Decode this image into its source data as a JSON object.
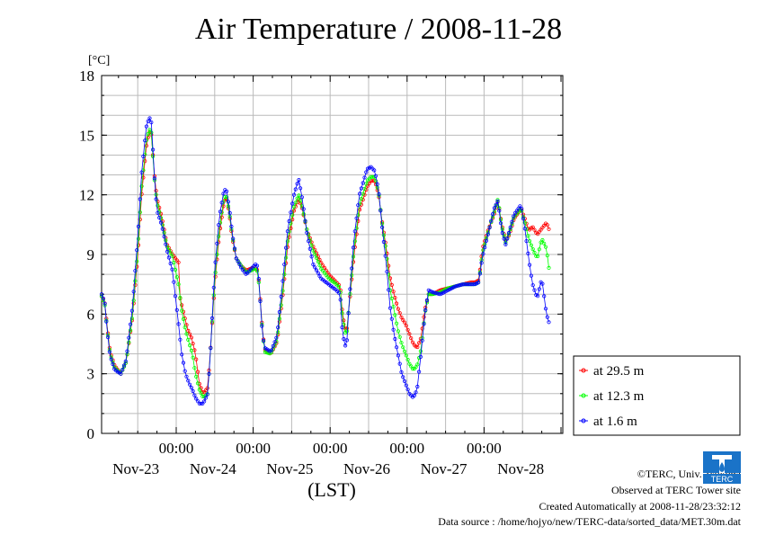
{
  "title": "Air Temperature / 2008-11-28",
  "colors": {
    "s29": "#ff0000",
    "s12": "#00ff00",
    "s1": "#0000ff",
    "grid": "#bbbbbb"
  },
  "footer": {
    "copyright": "©TERC, Univ. Tsukuba",
    "observed": "Observed at TERC Tower site",
    "created": "Created Automatically at 2008-11-28/23:32:12",
    "source": "Data source : /home/hojyo/new/TERC-data/sorted_data/MET.30m.dat"
  },
  "logo_icon": "terc-logo-icon",
  "chart_data": {
    "type": "line",
    "ylabel": "[°C]",
    "xlabel": "(LST)",
    "ylim": [
      0,
      18
    ],
    "yticks": [
      0,
      3,
      6,
      9,
      12,
      15,
      18
    ],
    "xlim": [
      0,
      6
    ],
    "xtick_time_label": "00:00",
    "date_labels": [
      "Nov-23",
      "Nov-24",
      "Nov-25",
      "Nov-26",
      "Nov-27",
      "Nov-28"
    ],
    "grid": true,
    "legend_position": "right",
    "series": [
      {
        "name": "at 29.5 m",
        "color": "#ff0000",
        "knots": [
          [
            0,
            6.9
          ],
          [
            0.04,
            6.6
          ],
          [
            0.07,
            5.5
          ],
          [
            0.11,
            4.1
          ],
          [
            0.17,
            3.4
          ],
          [
            0.25,
            3.0
          ],
          [
            0.32,
            3.6
          ],
          [
            0.4,
            5.8
          ],
          [
            0.47,
            8.9
          ],
          [
            0.52,
            12.0
          ],
          [
            0.58,
            14.4
          ],
          [
            0.62,
            15.2
          ],
          [
            0.65,
            15.0
          ],
          [
            0.68,
            13.2
          ],
          [
            0.72,
            11.8
          ],
          [
            0.78,
            10.9
          ],
          [
            0.85,
            9.5
          ],
          [
            0.92,
            9.0
          ],
          [
            1.0,
            8.6
          ],
          [
            1.02,
            6.8
          ],
          [
            1.07,
            6.0
          ],
          [
            1.12,
            5.2
          ],
          [
            1.17,
            4.8
          ],
          [
            1.22,
            4.0
          ],
          [
            1.27,
            2.5
          ],
          [
            1.32,
            2.0
          ],
          [
            1.38,
            2.3
          ],
          [
            1.42,
            4.5
          ],
          [
            1.47,
            7.5
          ],
          [
            1.53,
            10.0
          ],
          [
            1.59,
            11.6
          ],
          [
            1.62,
            11.9
          ],
          [
            1.66,
            11.0
          ],
          [
            1.7,
            9.8
          ],
          [
            1.75,
            8.8
          ],
          [
            1.82,
            8.4
          ],
          [
            1.88,
            8.2
          ],
          [
            1.95,
            8.3
          ],
          [
            2.0,
            8.3
          ],
          [
            2.03,
            8.2
          ],
          [
            2.06,
            6.9
          ],
          [
            2.09,
            5.2
          ],
          [
            2.12,
            4.2
          ],
          [
            2.2,
            4.0
          ],
          [
            2.28,
            4.6
          ],
          [
            2.35,
            6.8
          ],
          [
            2.42,
            9.5
          ],
          [
            2.5,
            11.2
          ],
          [
            2.56,
            11.8
          ],
          [
            2.6,
            11.4
          ],
          [
            2.67,
            10.2
          ],
          [
            2.75,
            9.4
          ],
          [
            2.85,
            8.6
          ],
          [
            2.95,
            8.0
          ],
          [
            3.05,
            7.6
          ],
          [
            3.1,
            7.4
          ],
          [
            3.13,
            6.0
          ],
          [
            3.18,
            5.0
          ],
          [
            3.22,
            6.5
          ],
          [
            3.28,
            9.0
          ],
          [
            3.35,
            11.2
          ],
          [
            3.45,
            12.4
          ],
          [
            3.5,
            12.7
          ],
          [
            3.55,
            12.7
          ],
          [
            3.6,
            12.0
          ],
          [
            3.65,
            10.5
          ],
          [
            3.7,
            9.3
          ],
          [
            3.75,
            7.8
          ],
          [
            3.8,
            7.0
          ],
          [
            3.85,
            6.3
          ],
          [
            3.9,
            5.8
          ],
          [
            3.95,
            5.5
          ],
          [
            4.0,
            5.0
          ],
          [
            4.05,
            4.5
          ],
          [
            4.1,
            4.3
          ],
          [
            4.15,
            4.8
          ],
          [
            4.2,
            6.2
          ],
          [
            4.25,
            7.0
          ],
          [
            4.3,
            7.0
          ],
          [
            4.4,
            7.2
          ],
          [
            4.5,
            7.3
          ],
          [
            4.6,
            7.4
          ],
          [
            4.7,
            7.5
          ],
          [
            4.8,
            7.6
          ],
          [
            4.85,
            7.6
          ],
          [
            4.9,
            7.7
          ],
          [
            4.95,
            9.3
          ],
          [
            5.02,
            10.2
          ],
          [
            5.1,
            11.0
          ],
          [
            5.15,
            11.7
          ],
          [
            5.2,
            10.5
          ],
          [
            5.25,
            9.7
          ],
          [
            5.3,
            10.0
          ],
          [
            5.36,
            10.8
          ],
          [
            5.45,
            11.3
          ],
          [
            5.5,
            10.8
          ],
          [
            5.55,
            10.2
          ],
          [
            5.6,
            10.4
          ],
          [
            5.66,
            10.0
          ],
          [
            5.72,
            10.3
          ],
          [
            5.78,
            10.6
          ],
          [
            5.82,
            10.2
          ]
        ]
      },
      {
        "name": "at 12.3 m",
        "color": "#00ff00",
        "knots": [
          [
            0,
            6.9
          ],
          [
            0.04,
            6.5
          ],
          [
            0.07,
            5.4
          ],
          [
            0.11,
            4.0
          ],
          [
            0.17,
            3.3
          ],
          [
            0.25,
            3.0
          ],
          [
            0.32,
            3.6
          ],
          [
            0.4,
            5.9
          ],
          [
            0.47,
            9.2
          ],
          [
            0.52,
            12.4
          ],
          [
            0.58,
            14.7
          ],
          [
            0.62,
            15.3
          ],
          [
            0.65,
            15.1
          ],
          [
            0.68,
            13.0
          ],
          [
            0.72,
            11.6
          ],
          [
            0.78,
            10.7
          ],
          [
            0.85,
            9.4
          ],
          [
            0.92,
            8.9
          ],
          [
            1.0,
            7.5
          ],
          [
            1.04,
            6.2
          ],
          [
            1.09,
            5.2
          ],
          [
            1.14,
            4.5
          ],
          [
            1.18,
            4.0
          ],
          [
            1.22,
            3.0
          ],
          [
            1.27,
            2.2
          ],
          [
            1.32,
            1.8
          ],
          [
            1.38,
            2.0
          ],
          [
            1.42,
            4.5
          ],
          [
            1.47,
            7.7
          ],
          [
            1.53,
            10.3
          ],
          [
            1.59,
            11.8
          ],
          [
            1.62,
            12.0
          ],
          [
            1.66,
            11.1
          ],
          [
            1.7,
            9.9
          ],
          [
            1.75,
            8.8
          ],
          [
            1.82,
            8.4
          ],
          [
            1.88,
            8.1
          ],
          [
            1.95,
            8.2
          ],
          [
            2.0,
            8.3
          ],
          [
            2.03,
            8.1
          ],
          [
            2.06,
            6.8
          ],
          [
            2.09,
            5.1
          ],
          [
            2.12,
            4.1
          ],
          [
            2.2,
            4.0
          ],
          [
            2.28,
            4.7
          ],
          [
            2.35,
            7.0
          ],
          [
            2.42,
            9.8
          ],
          [
            2.5,
            11.4
          ],
          [
            2.56,
            12.0
          ],
          [
            2.6,
            11.5
          ],
          [
            2.67,
            10.2
          ],
          [
            2.75,
            9.2
          ],
          [
            2.85,
            8.3
          ],
          [
            2.95,
            7.8
          ],
          [
            3.05,
            7.5
          ],
          [
            3.1,
            7.3
          ],
          [
            3.13,
            5.8
          ],
          [
            3.18,
            4.8
          ],
          [
            3.22,
            6.6
          ],
          [
            3.28,
            9.3
          ],
          [
            3.35,
            11.5
          ],
          [
            3.45,
            12.7
          ],
          [
            3.5,
            12.9
          ],
          [
            3.55,
            12.9
          ],
          [
            3.6,
            12.1
          ],
          [
            3.65,
            10.4
          ],
          [
            3.7,
            9.1
          ],
          [
            3.75,
            7.2
          ],
          [
            3.8,
            6.2
          ],
          [
            3.85,
            5.2
          ],
          [
            3.9,
            4.5
          ],
          [
            3.95,
            4.0
          ],
          [
            4.0,
            3.5
          ],
          [
            4.05,
            3.2
          ],
          [
            4.1,
            3.4
          ],
          [
            4.15,
            4.2
          ],
          [
            4.2,
            6.0
          ],
          [
            4.25,
            7.0
          ],
          [
            4.3,
            7.0
          ],
          [
            4.4,
            7.1
          ],
          [
            4.5,
            7.3
          ],
          [
            4.6,
            7.4
          ],
          [
            4.7,
            7.5
          ],
          [
            4.8,
            7.5
          ],
          [
            4.85,
            7.5
          ],
          [
            4.9,
            7.6
          ],
          [
            4.95,
            9.1
          ],
          [
            5.02,
            10.1
          ],
          [
            5.1,
            11.1
          ],
          [
            5.15,
            11.8
          ],
          [
            5.2,
            10.4
          ],
          [
            5.25,
            9.6
          ],
          [
            5.3,
            10.1
          ],
          [
            5.36,
            10.9
          ],
          [
            5.45,
            11.3
          ],
          [
            5.5,
            10.6
          ],
          [
            5.55,
            9.8
          ],
          [
            5.6,
            9.3
          ],
          [
            5.66,
            8.8
          ],
          [
            5.72,
            9.8
          ],
          [
            5.78,
            9.3
          ],
          [
            5.82,
            8.1
          ]
        ]
      },
      {
        "name": "at 1.6 m",
        "color": "#0000ff",
        "knots": [
          [
            0,
            7.0
          ],
          [
            0.04,
            6.6
          ],
          [
            0.07,
            5.3
          ],
          [
            0.11,
            3.9
          ],
          [
            0.17,
            3.2
          ],
          [
            0.25,
            3.0
          ],
          [
            0.32,
            3.7
          ],
          [
            0.4,
            6.3
          ],
          [
            0.47,
            9.8
          ],
          [
            0.52,
            13.1
          ],
          [
            0.58,
            15.4
          ],
          [
            0.62,
            15.9
          ],
          [
            0.65,
            15.6
          ],
          [
            0.68,
            13.2
          ],
          [
            0.72,
            11.2
          ],
          [
            0.78,
            10.5
          ],
          [
            0.85,
            9.2
          ],
          [
            0.92,
            8.2
          ],
          [
            1.0,
            5.5
          ],
          [
            1.04,
            4.0
          ],
          [
            1.09,
            3.0
          ],
          [
            1.14,
            2.5
          ],
          [
            1.18,
            2.2
          ],
          [
            1.22,
            1.8
          ],
          [
            1.27,
            1.5
          ],
          [
            1.32,
            1.5
          ],
          [
            1.38,
            2.0
          ],
          [
            1.42,
            4.5
          ],
          [
            1.47,
            8.2
          ],
          [
            1.53,
            10.9
          ],
          [
            1.59,
            12.2
          ],
          [
            1.62,
            12.3
          ],
          [
            1.66,
            11.3
          ],
          [
            1.7,
            10.0
          ],
          [
            1.75,
            8.8
          ],
          [
            1.82,
            8.3
          ],
          [
            1.88,
            8.0
          ],
          [
            1.95,
            8.3
          ],
          [
            2.0,
            8.5
          ],
          [
            2.03,
            8.4
          ],
          [
            2.06,
            6.8
          ],
          [
            2.09,
            5.0
          ],
          [
            2.12,
            4.3
          ],
          [
            2.2,
            4.1
          ],
          [
            2.28,
            4.9
          ],
          [
            2.35,
            7.5
          ],
          [
            2.42,
            10.3
          ],
          [
            2.5,
            12.0
          ],
          [
            2.56,
            12.8
          ],
          [
            2.6,
            12.0
          ],
          [
            2.67,
            10.0
          ],
          [
            2.75,
            8.5
          ],
          [
            2.85,
            7.8
          ],
          [
            2.95,
            7.5
          ],
          [
            3.05,
            7.2
          ],
          [
            3.1,
            7.0
          ],
          [
            3.13,
            5.0
          ],
          [
            3.18,
            4.2
          ],
          [
            3.22,
            6.8
          ],
          [
            3.28,
            9.8
          ],
          [
            3.35,
            12.0
          ],
          [
            3.45,
            13.3
          ],
          [
            3.5,
            13.4
          ],
          [
            3.55,
            13.2
          ],
          [
            3.6,
            12.2
          ],
          [
            3.65,
            10.2
          ],
          [
            3.7,
            8.5
          ],
          [
            3.75,
            6.3
          ],
          [
            3.8,
            5.0
          ],
          [
            3.85,
            4.0
          ],
          [
            3.9,
            3.0
          ],
          [
            3.95,
            2.5
          ],
          [
            4.0,
            2.0
          ],
          [
            4.05,
            1.8
          ],
          [
            4.1,
            2.2
          ],
          [
            4.15,
            4.0
          ],
          [
            4.2,
            6.0
          ],
          [
            4.25,
            7.2
          ],
          [
            4.3,
            7.1
          ],
          [
            4.4,
            7.0
          ],
          [
            4.5,
            7.2
          ],
          [
            4.6,
            7.4
          ],
          [
            4.7,
            7.5
          ],
          [
            4.8,
            7.5
          ],
          [
            4.85,
            7.5
          ],
          [
            4.9,
            7.6
          ],
          [
            4.95,
            8.9
          ],
          [
            5.02,
            10.0
          ],
          [
            5.1,
            11.3
          ],
          [
            5.15,
            11.7
          ],
          [
            5.2,
            10.2
          ],
          [
            5.25,
            9.5
          ],
          [
            5.3,
            10.2
          ],
          [
            5.36,
            11.0
          ],
          [
            5.45,
            11.5
          ],
          [
            5.5,
            10.3
          ],
          [
            5.55,
            8.8
          ],
          [
            5.6,
            7.5
          ],
          [
            5.66,
            6.8
          ],
          [
            5.72,
            7.8
          ],
          [
            5.78,
            6.0
          ],
          [
            5.82,
            5.5
          ]
        ]
      }
    ]
  }
}
